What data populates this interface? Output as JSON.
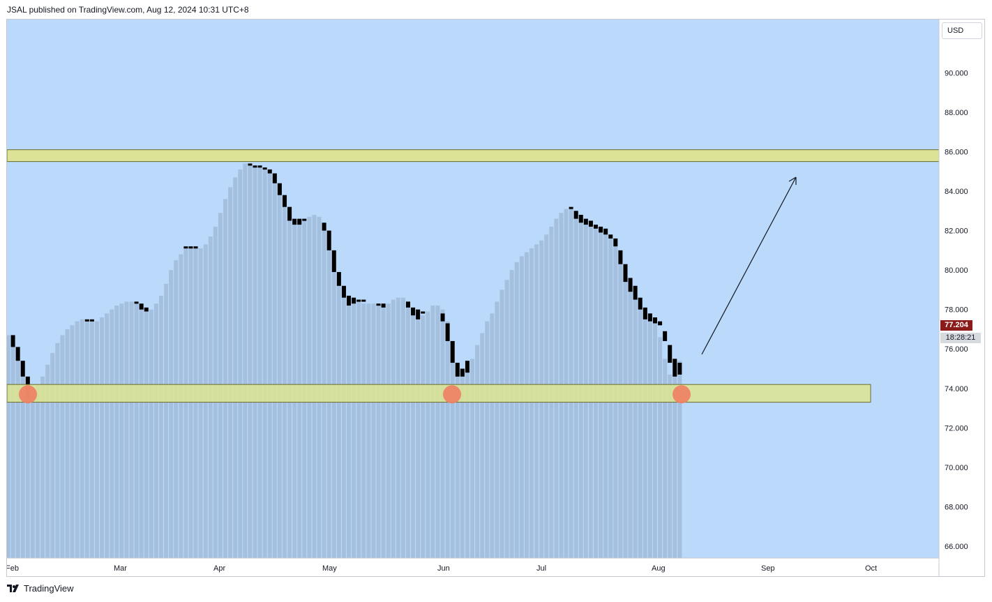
{
  "header": {
    "publish_text": "JSAL published on TradingView.com, Aug 12, 2024 10:31 UTC+8"
  },
  "toolbar": {
    "currency_label": "USD"
  },
  "footer": {
    "logo_text": "TradingView"
  },
  "price_scale": {
    "last_price_label": "77.204",
    "countdown_label": "18:28:21"
  },
  "colors": {
    "plot_background": "#bbd9fb",
    "area_fill": "#a5c0de",
    "candle": "#000000",
    "zone_fill": "#dde490",
    "zone_border": "#6b6b2a",
    "marker": "#ef7e63",
    "last_price_bg": "#8b1a1a"
  },
  "chart_data": {
    "type": "area",
    "x_axis_labels": [
      "Feb",
      "Mar",
      "Apr",
      "May",
      "Jun",
      "Jul",
      "Aug",
      "Sep",
      "Oct"
    ],
    "y_tick_labels": [
      "90.000",
      "88.000",
      "86.000",
      "84.000",
      "82.000",
      "80.000",
      "78.000",
      "76.000",
      "74.000",
      "72.000",
      "70.000",
      "68.000",
      "66.000"
    ],
    "ylim": [
      65.4,
      92.7
    ],
    "daily_close": [
      76.7,
      76.1,
      75.4,
      74.6,
      74.2,
      73.9,
      74.2,
      74.6,
      75.2,
      75.8,
      76.3,
      76.7,
      77.0,
      77.2,
      77.4,
      77.5,
      77.5,
      77.4,
      77.4,
      77.6,
      77.8,
      78.0,
      78.2,
      78.3,
      78.4,
      78.4,
      78.3,
      78.1,
      78.0,
      78.0,
      78.3,
      78.7,
      79.3,
      80.0,
      80.5,
      80.8,
      81.1,
      81.2,
      81.2,
      81.1,
      81.3,
      81.7,
      82.2,
      82.9,
      83.6,
      84.2,
      84.7,
      85.1,
      85.4,
      85.4,
      85.3,
      85.2,
      85.2,
      85.1,
      84.9,
      84.4,
      83.8,
      83.2,
      82.5,
      82.5,
      82.5,
      82.7,
      82.8,
      82.7,
      82.2,
      81.4,
      80.4,
      79.5,
      78.9,
      78.4,
      78.6,
      78.4,
      78.3,
      78.3,
      78.3,
      78.3,
      78.2,
      78.3,
      78.5,
      78.6,
      78.6,
      78.4,
      78.0,
      77.7,
      77.7,
      77.9,
      78.2,
      78.2,
      78.0,
      77.4,
      76.4,
      75.3,
      74.6,
      75.1,
      75.5,
      76.2,
      76.8,
      77.4,
      77.8,
      78.4,
      79.0,
      79.5,
      80.0,
      80.4,
      80.7,
      80.9,
      81.1,
      81.3,
      81.5,
      81.8,
      82.2,
      82.6,
      82.9,
      83.1,
      83.2,
      83.0,
      82.6,
      82.4,
      82.4,
      82.2,
      82.1,
      81.9,
      81.7,
      81.4,
      80.6,
      79.6,
      79.0,
      78.6,
      78.0,
      77.7,
      77.5,
      77.3,
      76.6,
      75.5,
      74.7,
      74.7,
      75.4
    ],
    "bars_highlighted_as_candles": [
      [
        1,
        76.7,
        76.1
      ],
      [
        2,
        76.1,
        75.4
      ],
      [
        3,
        75.4,
        74.6
      ],
      [
        4,
        74.6,
        73.4
      ],
      [
        16,
        77.5,
        77.4
      ],
      [
        17,
        77.5,
        77.4
      ],
      [
        26,
        78.4,
        78.3
      ],
      [
        27,
        78.3,
        78.0
      ],
      [
        28,
        78.1,
        77.9
      ],
      [
        36,
        81.2,
        81.1
      ],
      [
        37,
        81.2,
        81.1
      ],
      [
        38,
        81.2,
        81.1
      ],
      [
        49,
        85.4,
        85.3
      ],
      [
        50,
        85.3,
        85.2
      ],
      [
        51,
        85.3,
        85.2
      ],
      [
        52,
        85.2,
        85.1
      ],
      [
        53,
        85.1,
        84.9
      ],
      [
        54,
        84.9,
        84.4
      ],
      [
        55,
        84.4,
        83.8
      ],
      [
        56,
        83.8,
        83.2
      ],
      [
        57,
        83.2,
        82.5
      ],
      [
        58,
        82.6,
        82.3
      ],
      [
        59,
        82.6,
        82.3
      ],
      [
        60,
        82.6,
        82.5
      ],
      [
        64,
        82.4,
        82.0
      ],
      [
        65,
        82.0,
        81.0
      ],
      [
        66,
        81.0,
        79.9
      ],
      [
        67,
        79.9,
        79.2
      ],
      [
        68,
        79.2,
        78.6
      ],
      [
        69,
        78.7,
        78.2
      ],
      [
        70,
        78.6,
        78.3
      ],
      [
        71,
        78.5,
        78.4
      ],
      [
        72,
        78.5,
        78.4
      ],
      [
        75,
        78.3,
        78.2
      ],
      [
        76,
        78.3,
        78.1
      ],
      [
        81,
        78.4,
        78.1
      ],
      [
        82,
        78.1,
        77.7
      ],
      [
        83,
        78.0,
        77.5
      ],
      [
        84,
        77.9,
        77.8
      ],
      [
        88,
        77.8,
        77.4
      ],
      [
        89,
        77.3,
        76.4
      ],
      [
        90,
        76.4,
        75.3
      ],
      [
        91,
        75.3,
        74.6
      ],
      [
        92,
        75.0,
        74.6
      ],
      [
        93,
        75.4,
        74.8
      ],
      [
        114,
        83.2,
        83.1
      ],
      [
        115,
        83.0,
        82.6
      ],
      [
        116,
        82.8,
        82.4
      ],
      [
        117,
        82.6,
        82.3
      ],
      [
        118,
        82.5,
        82.2
      ],
      [
        119,
        82.3,
        82.1
      ],
      [
        120,
        82.2,
        81.9
      ],
      [
        121,
        82.1,
        81.8
      ],
      [
        122,
        81.8,
        81.6
      ],
      [
        123,
        81.6,
        81.2
      ],
      [
        124,
        81.0,
        80.3
      ],
      [
        125,
        80.3,
        79.4
      ],
      [
        126,
        79.6,
        78.9
      ],
      [
        127,
        79.2,
        78.5
      ],
      [
        128,
        78.6,
        78.0
      ],
      [
        129,
        78.1,
        77.5
      ],
      [
        130,
        77.8,
        77.4
      ],
      [
        131,
        77.6,
        77.3
      ],
      [
        132,
        77.4,
        77.2
      ],
      [
        133,
        76.9,
        76.4
      ],
      [
        134,
        76.2,
        75.3
      ],
      [
        135,
        75.5,
        74.6
      ],
      [
        136,
        75.3,
        74.7
      ]
    ],
    "resistance_zone": [
      85.5,
      86.1
    ],
    "support_zone": [
      73.3,
      74.2
    ],
    "touch_markers_at_price": 73.7
  }
}
